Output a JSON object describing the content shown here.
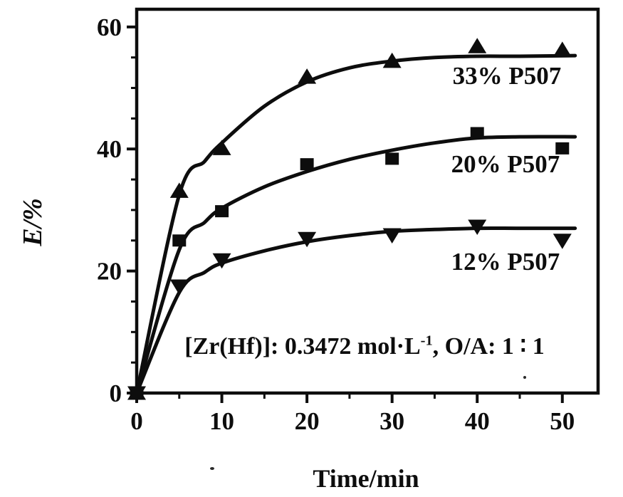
{
  "figure": {
    "background_color": "#ffffff",
    "ink_color": "#0d0d0d"
  },
  "chart_data": {
    "type": "line",
    "title": "",
    "xlabel": "Time/min",
    "ylabel": "E/%",
    "xlim": [
      0,
      54.2
    ],
    "ylim": [
      0,
      62.9
    ],
    "grid": false,
    "legend": "inline-labels",
    "x_ticks": {
      "major": [
        0,
        10,
        20,
        30,
        40,
        50
      ],
      "minor": [
        5,
        15,
        25,
        35,
        45
      ]
    },
    "y_ticks": {
      "major": [
        0,
        20,
        40,
        60
      ],
      "minor": [
        5,
        10,
        15,
        25,
        30,
        35,
        45,
        50,
        55
      ]
    },
    "annotation": {
      "prefix": "[Zr(Hf)]: 0.3472 mol·L",
      "superscript": "-1",
      "suffix": ", O/A: 1 ∶ 1"
    },
    "series": [
      {
        "name": "33% P507",
        "marker": "triangle-up",
        "points": [
          [
            0,
            0
          ],
          [
            5,
            33.1
          ],
          [
            10,
            40.1
          ],
          [
            20,
            51.8
          ],
          [
            30,
            54.4
          ],
          [
            40,
            56.8
          ],
          [
            50,
            56.2
          ]
        ],
        "fit_curve": [
          [
            0,
            0
          ],
          [
            5,
            32.5
          ],
          [
            8,
            38
          ],
          [
            10,
            41
          ],
          [
            15,
            47
          ],
          [
            20,
            51
          ],
          [
            25,
            53.3
          ],
          [
            30,
            54.4
          ],
          [
            35,
            55
          ],
          [
            40,
            55.2
          ],
          [
            45,
            55.2
          ],
          [
            51.5,
            55.3
          ]
        ]
      },
      {
        "name": "20% P507",
        "marker": "square",
        "points": [
          [
            0,
            0
          ],
          [
            5,
            25.0
          ],
          [
            10,
            29.8
          ],
          [
            20,
            37.5
          ],
          [
            30,
            38.4
          ],
          [
            40,
            42.6
          ],
          [
            50,
            40.1
          ]
        ],
        "fit_curve": [
          [
            0,
            0
          ],
          [
            5,
            23.5
          ],
          [
            8,
            28
          ],
          [
            10,
            30.3
          ],
          [
            15,
            33.8
          ],
          [
            20,
            36.3
          ],
          [
            25,
            38.3
          ],
          [
            30,
            39.8
          ],
          [
            35,
            41
          ],
          [
            40,
            41.8
          ],
          [
            45,
            42
          ],
          [
            51.5,
            42
          ]
        ]
      },
      {
        "name": "12% P507",
        "marker": "triangle-down",
        "points": [
          [
            0,
            0
          ],
          [
            5,
            17.5
          ],
          [
            10,
            21.8
          ],
          [
            20,
            25.3
          ],
          [
            30,
            25.9
          ],
          [
            40,
            27.3
          ],
          [
            50,
            25.0
          ]
        ],
        "fit_curve": [
          [
            0,
            0
          ],
          [
            5,
            16.5
          ],
          [
            8,
            19.8
          ],
          [
            10,
            21.3
          ],
          [
            15,
            23.3
          ],
          [
            20,
            24.8
          ],
          [
            25,
            25.8
          ],
          [
            30,
            26.5
          ],
          [
            35,
            26.8
          ],
          [
            40,
            27
          ],
          [
            45,
            27
          ],
          [
            51.5,
            27
          ]
        ]
      }
    ]
  }
}
